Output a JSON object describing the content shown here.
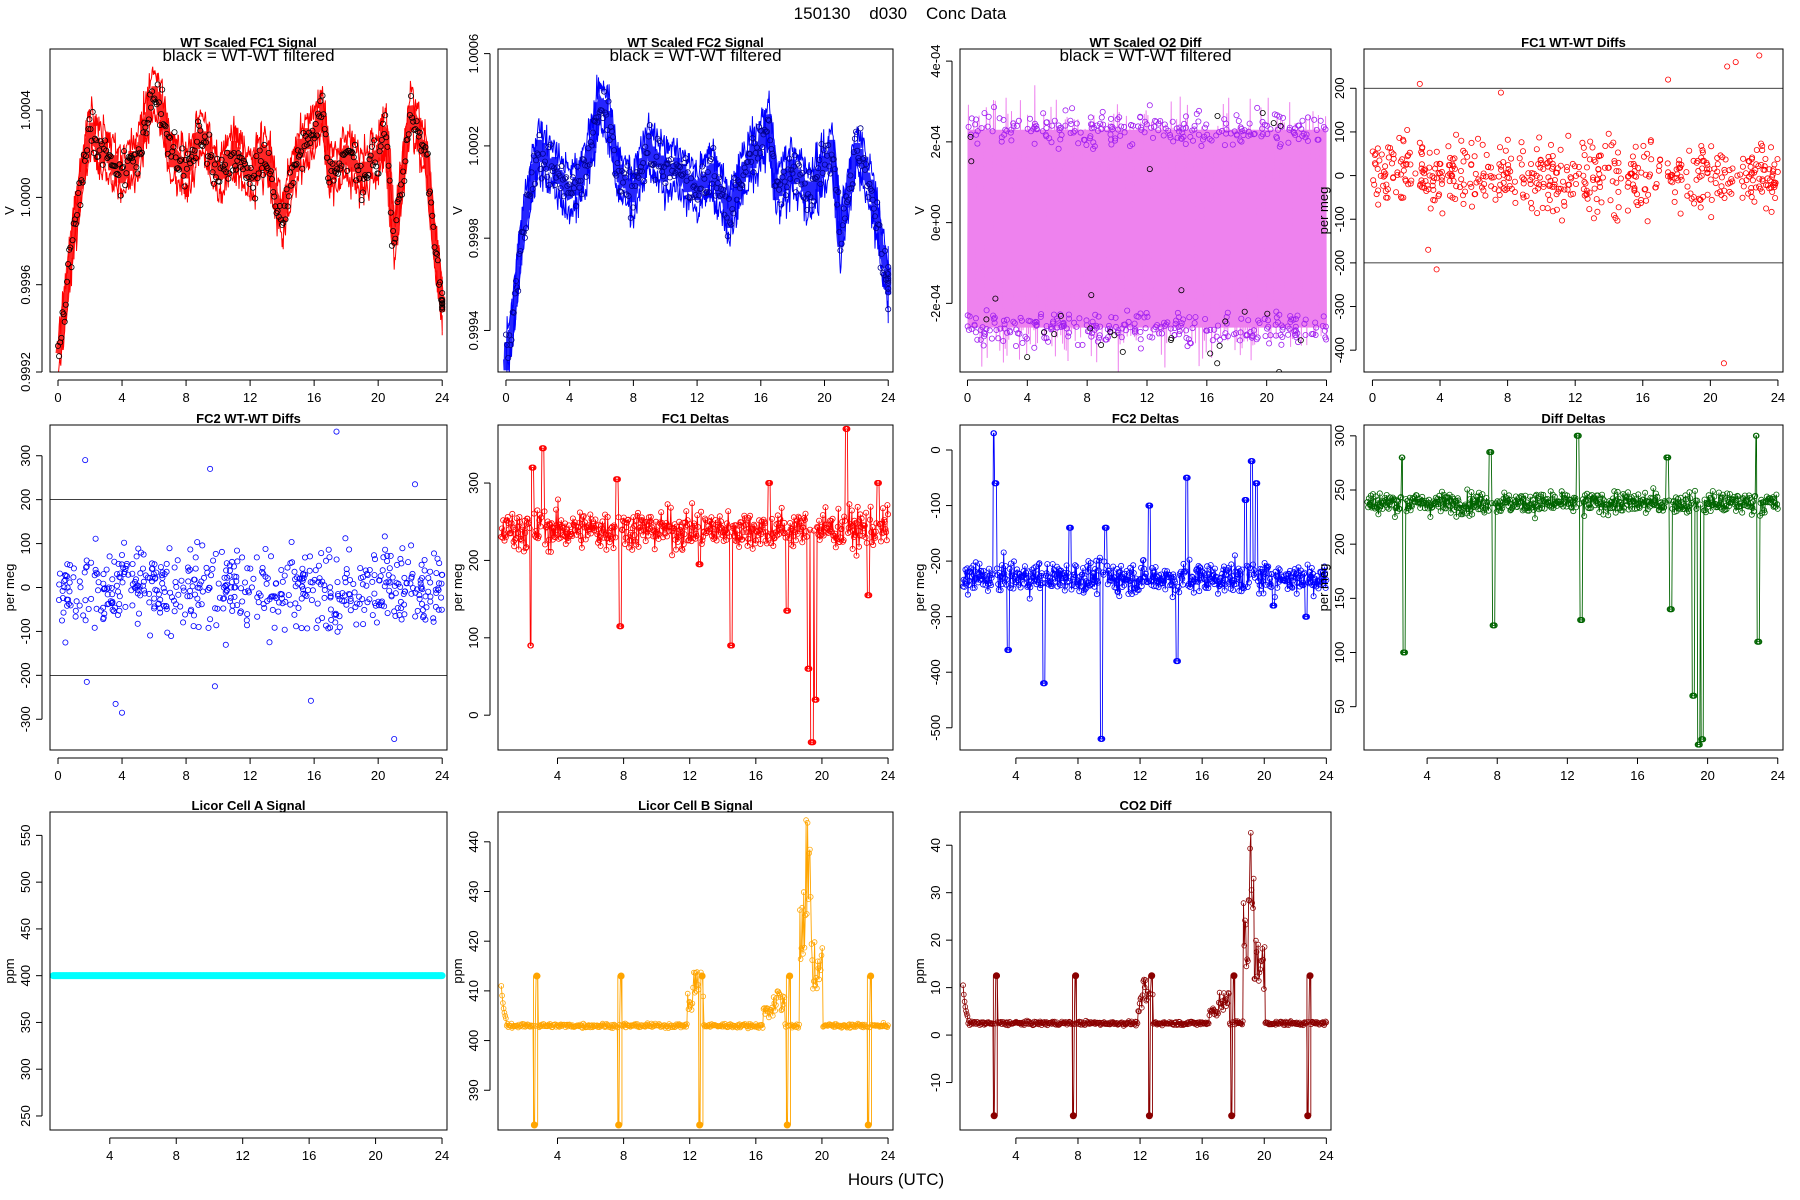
{
  "page": {
    "title": "150130    d030    Conc Data",
    "xlabel": "Hours (UTC)"
  },
  "colors": {
    "fc1": "#ff0000",
    "fc2": "#0000ff",
    "o2diff": "#ee82ee",
    "o2diff_points": "#a020f0",
    "diffdeltas": "#006400",
    "licorA": "#00ffff",
    "licorB": "#ffa500",
    "co2diff": "#8b0000",
    "refline": "#000000"
  },
  "chart_data": [
    {
      "id": "p1",
      "type": "line",
      "title": "WT Scaled FC1 Signal",
      "subtitle": "black = WT-WT filtered",
      "ylabel": "V",
      "xlim": [
        -0.5,
        24.3
      ],
      "ylim": [
        0.9992,
        1.00068
      ],
      "xticks": [
        0,
        4,
        8,
        12,
        16,
        20,
        24
      ],
      "xtick_labels": [
        "0",
        "4",
        "8",
        "12",
        "16",
        "20",
        "24"
      ],
      "yticks": [
        0.9992,
        0.9996,
        1.0,
        1.0004
      ],
      "ytick_labels": [
        "0.9992",
        "0.9996",
        "1.0000",
        "1.0004"
      ],
      "x": [
        0,
        0.5,
        1,
        1.5,
        2,
        3,
        4,
        5,
        6,
        6.5,
        7,
        8,
        9,
        10,
        11,
        12,
        13,
        14,
        15,
        16,
        16.5,
        17,
        18,
        19,
        20,
        20.5,
        21,
        21.5,
        22,
        23,
        23.5,
        24
      ],
      "values": [
        0.99925,
        0.99955,
        0.99985,
        1.0001,
        1.0003,
        1.0002,
        1.0001,
        1.0002,
        1.0005,
        1.0004,
        1.0002,
        1.0001,
        1.0003,
        1.0001,
        1.0002,
        1.0001,
        1.0002,
        0.9999,
        1.0002,
        1.0003,
        1.0004,
        1.0001,
        1.0002,
        1.0001,
        1.0002,
        1.0003,
        0.9998,
        1.0001,
        1.0004,
        1.0002,
        0.9998,
        0.9995
      ],
      "band": 0.0001,
      "jitter": 6e-05,
      "line_color": "fc1",
      "point_color": "#000000",
      "style": "signal"
    },
    {
      "id": "p2",
      "type": "line",
      "title": "WT Scaled FC2 Signal",
      "subtitle": "black = WT-WT filtered",
      "ylabel": "V",
      "xlim": [
        -0.5,
        24.3
      ],
      "ylim": [
        0.99922,
        1.00062
      ],
      "xticks": [
        0,
        4,
        8,
        12,
        16,
        20,
        24
      ],
      "xtick_labels": [
        "0",
        "4",
        "8",
        "12",
        "16",
        "20",
        "24"
      ],
      "yticks": [
        0.9994,
        0.9998,
        1.0002,
        1.0006
      ],
      "ytick_labels": [
        "0.9994",
        "0.9998",
        "1.0002",
        "1.0006"
      ],
      "x": [
        0,
        0.5,
        1,
        1.5,
        2,
        3,
        4,
        5,
        6,
        6.5,
        7,
        8,
        9,
        10,
        11,
        12,
        13,
        14,
        15,
        16,
        16.5,
        17,
        18,
        19,
        20,
        20.5,
        21,
        21.5,
        22,
        23,
        23.5,
        24
      ],
      "values": [
        0.99925,
        0.9995,
        0.9998,
        1.0,
        1.0002,
        1.0001,
        1.0,
        1.0001,
        1.0004,
        1.0003,
        1.0001,
        1.0,
        1.0002,
        1.0001,
        1.0001,
        1.0,
        1.0001,
        0.9999,
        1.0001,
        1.0002,
        1.0003,
        1.0,
        1.0001,
        1.0,
        1.0001,
        1.0002,
        0.9998,
        1.0,
        1.0002,
        1.0,
        0.9998,
        0.9996
      ],
      "band": 0.0001,
      "jitter": 6e-05,
      "line_color": "fc2",
      "point_color": "#00008b",
      "style": "signal"
    },
    {
      "id": "p3",
      "type": "line",
      "title": "WT Scaled O2 Diff",
      "subtitle": "black = WT-WT filtered",
      "ylabel": "V",
      "xlim": [
        -0.5,
        24.3
      ],
      "ylim": [
        -0.00037,
        0.00043
      ],
      "xticks": [
        0,
        4,
        8,
        12,
        16,
        20,
        24
      ],
      "xtick_labels": [
        "0",
        "4",
        "8",
        "12",
        "16",
        "20",
        "24"
      ],
      "yticks": [
        -0.0002,
        0.0,
        0.0002,
        0.0004
      ],
      "ytick_labels": [
        "-2e-04",
        "0e+00",
        "2e-04",
        "4e-04"
      ],
      "upper": 0.00023,
      "lower": -0.00026,
      "jitter": 3e-05,
      "line_color": "o2diff",
      "point_color": "o2diff_points",
      "style": "diff"
    },
    {
      "id": "p4",
      "type": "scatter",
      "title": "FC1 WT-WT Diffs",
      "ylabel": "per meg",
      "xlim": [
        -0.5,
        24.3
      ],
      "ylim": [
        -450,
        290
      ],
      "xticks": [
        0,
        4,
        8,
        12,
        16,
        20,
        24
      ],
      "xtick_labels": [
        "0",
        "4",
        "8",
        "12",
        "16",
        "20",
        "24"
      ],
      "yticks": [
        -400,
        -300,
        -200,
        -100,
        0,
        100,
        200
      ],
      "ytick_labels": [
        "-400",
        "-300",
        "-200",
        "-100",
        "0",
        "100",
        "200"
      ],
      "hlines": [
        200,
        -200
      ],
      "center": 0,
      "spread": 55,
      "n": 560,
      "outliers": [
        [
          2.8,
          210
        ],
        [
          3.8,
          -215
        ],
        [
          7.6,
          190
        ],
        [
          17.5,
          220
        ],
        [
          21.0,
          250
        ],
        [
          21.5,
          260
        ],
        [
          22.9,
          275
        ],
        [
          20.8,
          -430
        ],
        [
          3.3,
          -170
        ]
      ],
      "point_color": "fc1"
    },
    {
      "id": "p5",
      "type": "scatter",
      "title": "FC2 WT-WT Diffs",
      "ylabel": "per meg",
      "xlim": [
        -0.5,
        24.3
      ],
      "ylim": [
        -370,
        370
      ],
      "xticks": [
        0,
        4,
        8,
        12,
        16,
        20,
        24
      ],
      "xtick_labels": [
        "0",
        "4",
        "8",
        "12",
        "16",
        "20",
        "24"
      ],
      "yticks": [
        -300,
        -200,
        -100,
        0,
        100,
        200,
        300
      ],
      "ytick_labels": [
        "-300",
        "-200",
        "-100",
        "0",
        "100",
        "200",
        "300"
      ],
      "hlines": [
        200,
        -200
      ],
      "center": 0,
      "spread": 65,
      "n": 560,
      "outliers": [
        [
          1.7,
          290
        ],
        [
          9.5,
          270
        ],
        [
          17.4,
          355
        ],
        [
          22.3,
          235
        ],
        [
          21.0,
          -345
        ],
        [
          4.0,
          -285
        ],
        [
          15.8,
          -258
        ],
        [
          1.8,
          -215
        ],
        [
          9.8,
          -225
        ],
        [
          3.6,
          -265
        ]
      ],
      "point_color": "fc2"
    },
    {
      "id": "p6",
      "type": "line",
      "title": "FC1 Deltas",
      "ylabel": "per meg",
      "xlim": [
        0.4,
        24.3
      ],
      "ylim": [
        -45,
        375
      ],
      "xticks": [
        4,
        8,
        12,
        16,
        20,
        24
      ],
      "xtick_labels": [
        "4",
        "8",
        "12",
        "16",
        "20",
        "24"
      ],
      "yticks": [
        0,
        100,
        200,
        300
      ],
      "ytick_labels": [
        "0",
        "100",
        "200",
        "300"
      ],
      "base": 240,
      "noise": 18,
      "n": 600,
      "spikes": [
        [
          2.4,
          90
        ],
        [
          2.5,
          320
        ],
        [
          3.1,
          345
        ],
        [
          7.8,
          115
        ],
        [
          7.6,
          305
        ],
        [
          12.6,
          195
        ],
        [
          14.5,
          90
        ],
        [
          16.8,
          300
        ],
        [
          17.9,
          135
        ],
        [
          19.2,
          60
        ],
        [
          19.4,
          -35
        ],
        [
          19.6,
          20
        ],
        [
          21.5,
          370
        ],
        [
          22.8,
          155
        ],
        [
          23.4,
          300
        ]
      ],
      "point_color": "fc1",
      "style": "delta"
    },
    {
      "id": "p7",
      "type": "line",
      "title": "FC2 Deltas",
      "ylabel": "per meg",
      "xlim": [
        0.4,
        24.3
      ],
      "ylim": [
        -540,
        45
      ],
      "xticks": [
        4,
        8,
        12,
        16,
        20,
        24
      ],
      "xtick_labels": [
        "4",
        "8",
        "12",
        "16",
        "20",
        "24"
      ],
      "yticks": [
        -500,
        -400,
        -300,
        -200,
        -100,
        0
      ],
      "ytick_labels": [
        "-500",
        "-400",
        "-300",
        "-200",
        "-100",
        "0"
      ],
      "base": -230,
      "noise": 20,
      "n": 600,
      "spikes": [
        [
          2.6,
          30
        ],
        [
          2.7,
          -60
        ],
        [
          3.5,
          -360
        ],
        [
          5.8,
          -420
        ],
        [
          7.5,
          -140
        ],
        [
          9.5,
          -520
        ],
        [
          9.8,
          -140
        ],
        [
          12.6,
          -100
        ],
        [
          14.4,
          -380
        ],
        [
          15.0,
          -50
        ],
        [
          18.8,
          -90
        ],
        [
          19.2,
          -20
        ],
        [
          19.5,
          -60
        ],
        [
          20.6,
          -280
        ],
        [
          22.7,
          -300
        ]
      ],
      "point_color": "fc2",
      "style": "delta"
    },
    {
      "id": "p8",
      "type": "line",
      "title": "Diff Deltas",
      "ylabel": "per meg",
      "xlim": [
        0.4,
        24.3
      ],
      "ylim": [
        10,
        310
      ],
      "xticks": [
        4,
        8,
        12,
        16,
        20,
        24
      ],
      "xtick_labels": [
        "4",
        "8",
        "12",
        "16",
        "20",
        "24"
      ],
      "yticks": [
        50,
        100,
        150,
        200,
        250,
        300
      ],
      "ytick_labels": [
        "50",
        "100",
        "150",
        "200",
        "250",
        "300"
      ],
      "base": 238,
      "noise": 7,
      "n": 600,
      "spikes": [
        [
          2.6,
          280
        ],
        [
          2.7,
          100
        ],
        [
          7.6,
          285
        ],
        [
          7.8,
          125
        ],
        [
          12.6,
          300
        ],
        [
          12.8,
          130
        ],
        [
          17.7,
          280
        ],
        [
          17.9,
          140
        ],
        [
          19.2,
          60
        ],
        [
          19.5,
          15
        ],
        [
          19.7,
          20
        ],
        [
          22.8,
          300
        ],
        [
          22.9,
          110
        ]
      ],
      "point_color": "diffdeltas",
      "style": "delta"
    },
    {
      "id": "p9",
      "type": "line",
      "title": "Licor Cell A Signal",
      "ylabel": "ppm",
      "xlim": [
        0.4,
        24.3
      ],
      "ylim": [
        235,
        575
      ],
      "xticks": [
        4,
        8,
        12,
        16,
        20,
        24
      ],
      "xtick_labels": [
        "4",
        "8",
        "12",
        "16",
        "20",
        "24"
      ],
      "yticks": [
        250,
        300,
        350,
        400,
        450,
        500,
        550
      ],
      "ytick_labels": [
        "250",
        "300",
        "350",
        "400",
        "450",
        "500",
        "550"
      ],
      "constant": 400,
      "point_color": "licorA",
      "style": "flat"
    },
    {
      "id": "p10",
      "type": "line",
      "title": "Licor Cell B Signal",
      "ylabel": "ppm",
      "xlim": [
        0.4,
        24.3
      ],
      "ylim": [
        382,
        446
      ],
      "xticks": [
        4,
        8,
        12,
        16,
        20,
        24
      ],
      "xtick_labels": [
        "4",
        "8",
        "12",
        "16",
        "20",
        "24"
      ],
      "yticks": [
        390,
        400,
        410,
        420,
        430,
        440
      ],
      "ytick_labels": [
        "390",
        "400",
        "410",
        "420",
        "430",
        "440"
      ],
      "base": 403,
      "noise": 0.3,
      "n": 500,
      "low": 383,
      "high": 413,
      "events": [
        2.6,
        7.7,
        12.6,
        17.9,
        22.8
      ],
      "bumps": [
        [
          12.2,
          410
        ],
        [
          12.5,
          414
        ],
        [
          16.8,
          407
        ],
        [
          17.4,
          410
        ],
        [
          19.0,
          430
        ],
        [
          19.3,
          445
        ],
        [
          19.5,
          440
        ],
        [
          19.7,
          420
        ]
      ],
      "point_color": "licorB",
      "style": "licor"
    },
    {
      "id": "p11",
      "type": "line",
      "title": "CO2 Diff",
      "ylabel": "ppm",
      "xlim": [
        0.4,
        24.3
      ],
      "ylim": [
        -20,
        47
      ],
      "xticks": [
        4,
        8,
        12,
        16,
        20,
        24
      ],
      "xtick_labels": [
        "4",
        "8",
        "12",
        "16",
        "20",
        "24"
      ],
      "yticks": [
        -10,
        0,
        10,
        20,
        30,
        40
      ],
      "ytick_labels": [
        "-10",
        "0",
        "10",
        "20",
        "30",
        "40"
      ],
      "base": 2.5,
      "noise": 0.3,
      "n": 500,
      "low": -17,
      "high": 12.5,
      "events": [
        2.6,
        7.7,
        12.6,
        17.9,
        22.8
      ],
      "bumps": [
        [
          12.2,
          8
        ],
        [
          12.5,
          12
        ],
        [
          16.8,
          6
        ],
        [
          17.4,
          9
        ],
        [
          19.0,
          30
        ],
        [
          19.3,
          46
        ],
        [
          19.5,
          40
        ],
        [
          19.7,
          20
        ]
      ],
      "point_color": "co2diff",
      "style": "licor"
    }
  ]
}
